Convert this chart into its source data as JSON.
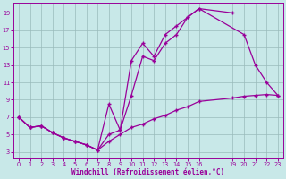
{
  "xlabel": "Windchill (Refroidissement éolien,°C)",
  "bg_color": "#c8e8e8",
  "line_color": "#990099",
  "grid_color": "#99bbbb",
  "xlim": [
    -0.5,
    23.5
  ],
  "ylim": [
    2.2,
    20.2
  ],
  "xticks": [
    0,
    1,
    2,
    3,
    4,
    5,
    6,
    7,
    8,
    9,
    10,
    11,
    12,
    13,
    14,
    15,
    16,
    19,
    20,
    21,
    22,
    23
  ],
  "yticks": [
    3,
    5,
    7,
    9,
    11,
    13,
    15,
    17,
    19
  ],
  "line1_x": [
    0,
    1,
    2,
    3,
    4,
    5,
    6,
    7,
    8,
    9,
    10,
    11,
    12,
    13,
    14,
    15,
    16,
    19
  ],
  "line1_y": [
    7.0,
    5.8,
    6.0,
    5.2,
    4.6,
    4.2,
    3.8,
    3.2,
    8.5,
    5.5,
    13.5,
    15.5,
    14.0,
    16.5,
    17.5,
    18.5,
    19.5,
    19.0
  ],
  "line2_x": [
    0,
    1,
    2,
    3,
    4,
    5,
    6,
    7,
    8,
    9,
    10,
    11,
    12,
    13,
    14,
    15,
    16,
    20,
    21,
    22,
    23
  ],
  "line2_y": [
    7.0,
    5.8,
    6.0,
    5.2,
    4.6,
    4.2,
    3.8,
    3.2,
    5.0,
    5.5,
    9.5,
    14.0,
    13.5,
    15.5,
    16.5,
    18.5,
    19.5,
    16.5,
    13.0,
    11.0,
    9.5
  ],
  "line3_x": [
    0,
    1,
    2,
    3,
    4,
    5,
    6,
    7,
    8,
    9,
    10,
    11,
    12,
    13,
    14,
    15,
    16,
    19,
    20,
    21,
    22,
    23
  ],
  "line3_y": [
    7.0,
    5.8,
    6.0,
    5.2,
    4.6,
    4.2,
    3.8,
    3.2,
    4.2,
    5.0,
    5.8,
    6.2,
    6.8,
    7.2,
    7.8,
    8.2,
    8.8,
    9.2,
    9.4,
    9.5,
    9.6,
    9.5
  ]
}
